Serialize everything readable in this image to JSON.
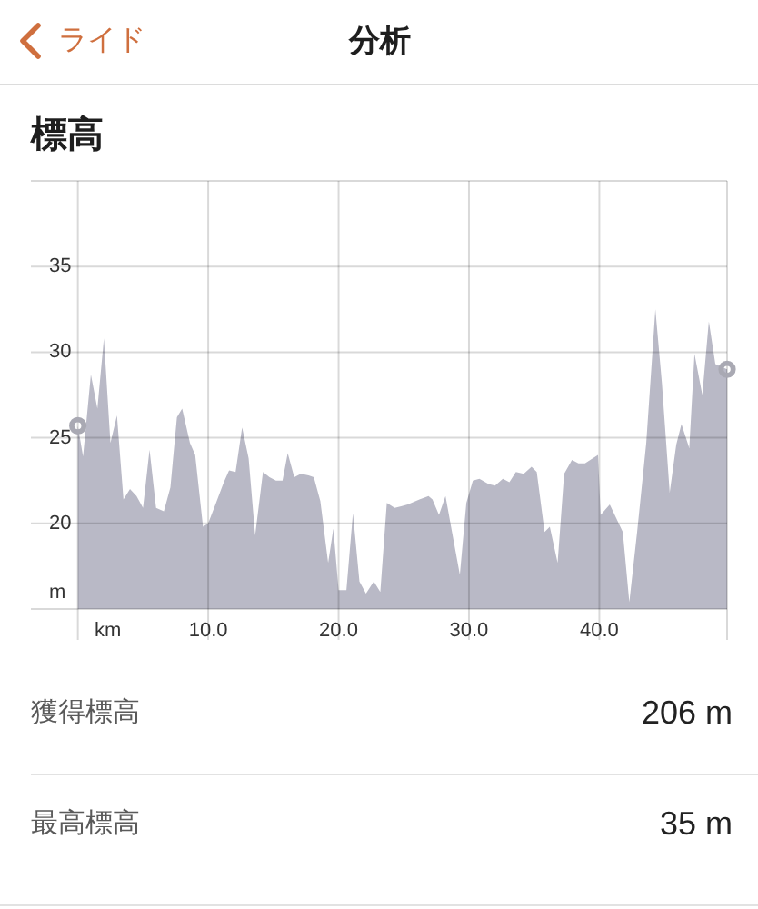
{
  "chart_data": {
    "type": "area",
    "title": "標高",
    "xlabel": "km",
    "ylabel": "m",
    "annotations": [
      "ライド",
      "分析",
      "獲得標高",
      "206 m",
      "最高標高",
      "35 m"
    ],
    "xlim": [
      -3.6,
      49.8
    ],
    "ylim": [
      15,
      40
    ],
    "xticks": [
      {
        "value": 0,
        "label": null
      },
      {
        "value": 10,
        "label": "10.0"
      },
      {
        "value": 20,
        "label": "20.0"
      },
      {
        "value": 30,
        "label": "30.0"
      },
      {
        "value": 40,
        "label": "40.0"
      }
    ],
    "yticks": [
      20,
      25,
      30,
      35
    ],
    "grid": true,
    "series": [
      {
        "color": "#b9b9c6",
        "x": [
          0,
          0.4,
          1.0,
          1.5,
          2.0,
          2.5,
          3.0,
          3.5,
          4.0,
          4.5,
          5.0,
          5.5,
          6.0,
          6.6,
          7.1,
          7.6,
          8.0,
          8.6,
          9.0,
          9.6,
          10.0,
          10.6,
          11.2,
          11.6,
          12.1,
          12.6,
          13.1,
          13.6,
          14.2,
          14.7,
          15.2,
          15.7,
          16.1,
          16.6,
          17.1,
          17.7,
          18.1,
          18.6,
          19.2,
          19.6,
          20.0,
          20.6,
          21.1,
          21.6,
          22.1,
          22.7,
          23.2,
          23.7,
          24.3,
          24.8,
          25.3,
          26.2,
          26.9,
          27.2,
          27.7,
          28.2,
          28.7,
          29.3,
          29.8,
          30.3,
          30.8,
          31.5,
          32.0,
          32.6,
          33.1,
          33.6,
          34.2,
          34.8,
          35.2,
          35.8,
          36.2,
          36.8,
          37.3,
          37.9,
          38.4,
          38.9,
          39.9,
          40.1,
          40.8,
          41.8,
          42.3,
          42.9,
          43.6,
          44.3,
          44.8,
          45.4,
          45.9,
          46.3,
          46.9,
          47.3,
          47.9,
          48.4,
          48.9,
          49.8
        ],
        "values": [
          25.7,
          23.9,
          28.7,
          26.7,
          30.8,
          24.7,
          26.3,
          21.4,
          22.0,
          21.6,
          20.9,
          24.3,
          20.9,
          20.7,
          22.1,
          26.2,
          26.7,
          24.7,
          24.0,
          19.8,
          20.0,
          21.2,
          22.4,
          23.1,
          23.0,
          25.6,
          23.8,
          19.3,
          23.0,
          22.7,
          22.5,
          22.5,
          24.1,
          22.7,
          22.9,
          22.8,
          22.7,
          21.3,
          17.7,
          19.7,
          16.1,
          16.1,
          20.6,
          16.6,
          15.9,
          16.6,
          16.0,
          21.2,
          20.9,
          21.0,
          21.1,
          21.4,
          21.6,
          21.4,
          20.5,
          21.6,
          19.5,
          17.0,
          21.2,
          22.5,
          22.6,
          22.3,
          22.2,
          22.6,
          22.4,
          23.0,
          22.9,
          23.3,
          23.0,
          19.5,
          19.8,
          17.7,
          22.9,
          23.7,
          23.5,
          23.5,
          24.0,
          20.5,
          21.1,
          19.5,
          15.4,
          19.5,
          24.7,
          32.5,
          28.2,
          21.8,
          24.6,
          25.8,
          24.4,
          29.9,
          27.5,
          31.8,
          29.3,
          29.0
        ]
      },
      {
        "type": "scatter",
        "color": "#a9a9b3",
        "marker": "circle",
        "x": [
          0,
          49.8
        ],
        "values": [
          25.7,
          29.0
        ]
      }
    ]
  }
}
